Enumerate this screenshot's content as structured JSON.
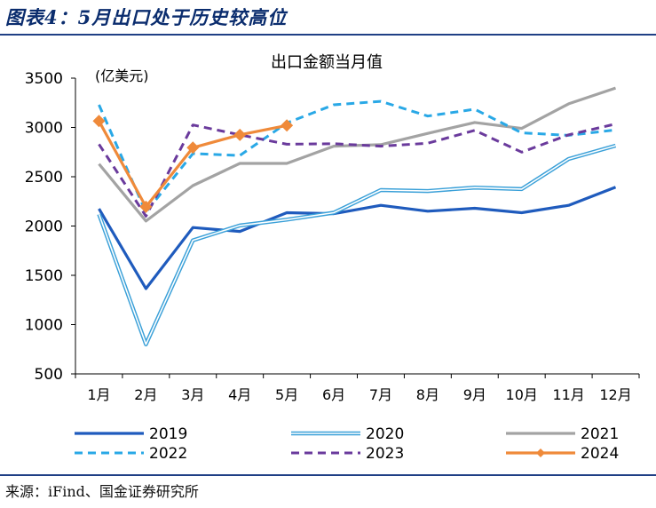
{
  "figure_title": "图表4：5月出口处于历史较高位",
  "source": "来源：iFind、国金证券研究所",
  "chart_data": {
    "type": "line",
    "title": "出口金额当月值",
    "unit": "(亿美元)",
    "categories": [
      "1月",
      "2月",
      "3月",
      "4月",
      "5月",
      "6月",
      "7月",
      "8月",
      "9月",
      "10月",
      "11月",
      "12月"
    ],
    "ylim": [
      500,
      3500
    ],
    "yticks": [
      500,
      1000,
      1500,
      2000,
      2500,
      3000,
      3500
    ],
    "grid": false,
    "legend_position": "bottom",
    "series": [
      {
        "name": "2019",
        "color": "#1f5bbd",
        "style": "solid-thick",
        "values": [
          2175,
          1365,
          1985,
          1945,
          2135,
          2125,
          2210,
          2150,
          2180,
          2135,
          2210,
          2395
        ]
      },
      {
        "name": "2020",
        "color": "#3aa0d8",
        "style": "double-line",
        "values": [
          2120,
          800,
          1855,
          2005,
          2065,
          2135,
          2365,
          2355,
          2390,
          2375,
          2680,
          2815
        ]
      },
      {
        "name": "2021",
        "color": "#a3a3a3",
        "style": "solid-thick",
        "values": [
          2630,
          2050,
          2410,
          2635,
          2635,
          2810,
          2825,
          2940,
          3050,
          2990,
          3240,
          3400
        ]
      },
      {
        "name": "2022",
        "color": "#29a8e6",
        "style": "dashed",
        "values": [
          3230,
          2140,
          2735,
          2715,
          3045,
          3230,
          3265,
          3115,
          3185,
          2945,
          2920,
          2975
        ]
      },
      {
        "name": "2023",
        "color": "#6a3a9c",
        "style": "dashed",
        "values": [
          2830,
          2100,
          3025,
          2925,
          2830,
          2835,
          2810,
          2840,
          2970,
          2750,
          2925,
          3035
        ]
      },
      {
        "name": "2024",
        "color": "#ef8a3a",
        "style": "solid-markers",
        "values": [
          3065,
          2195,
          2795,
          2925,
          3020,
          null,
          null,
          null,
          null,
          null,
          null,
          null
        ]
      }
    ]
  }
}
